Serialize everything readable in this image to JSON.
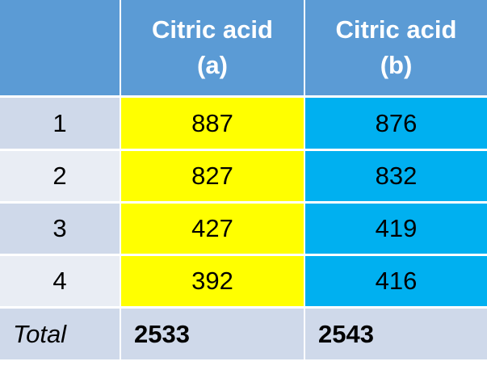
{
  "table": {
    "header": [
      "",
      [
        "Citric acid",
        "(a)"
      ],
      [
        "Citric acid",
        "(b)"
      ]
    ],
    "rows": [
      [
        "1",
        887,
        876
      ],
      [
        "2",
        827,
        832
      ],
      [
        "3",
        427,
        419
      ],
      [
        "4",
        392,
        416
      ]
    ],
    "total": [
      "Total",
      2533,
      2543
    ]
  }
}
